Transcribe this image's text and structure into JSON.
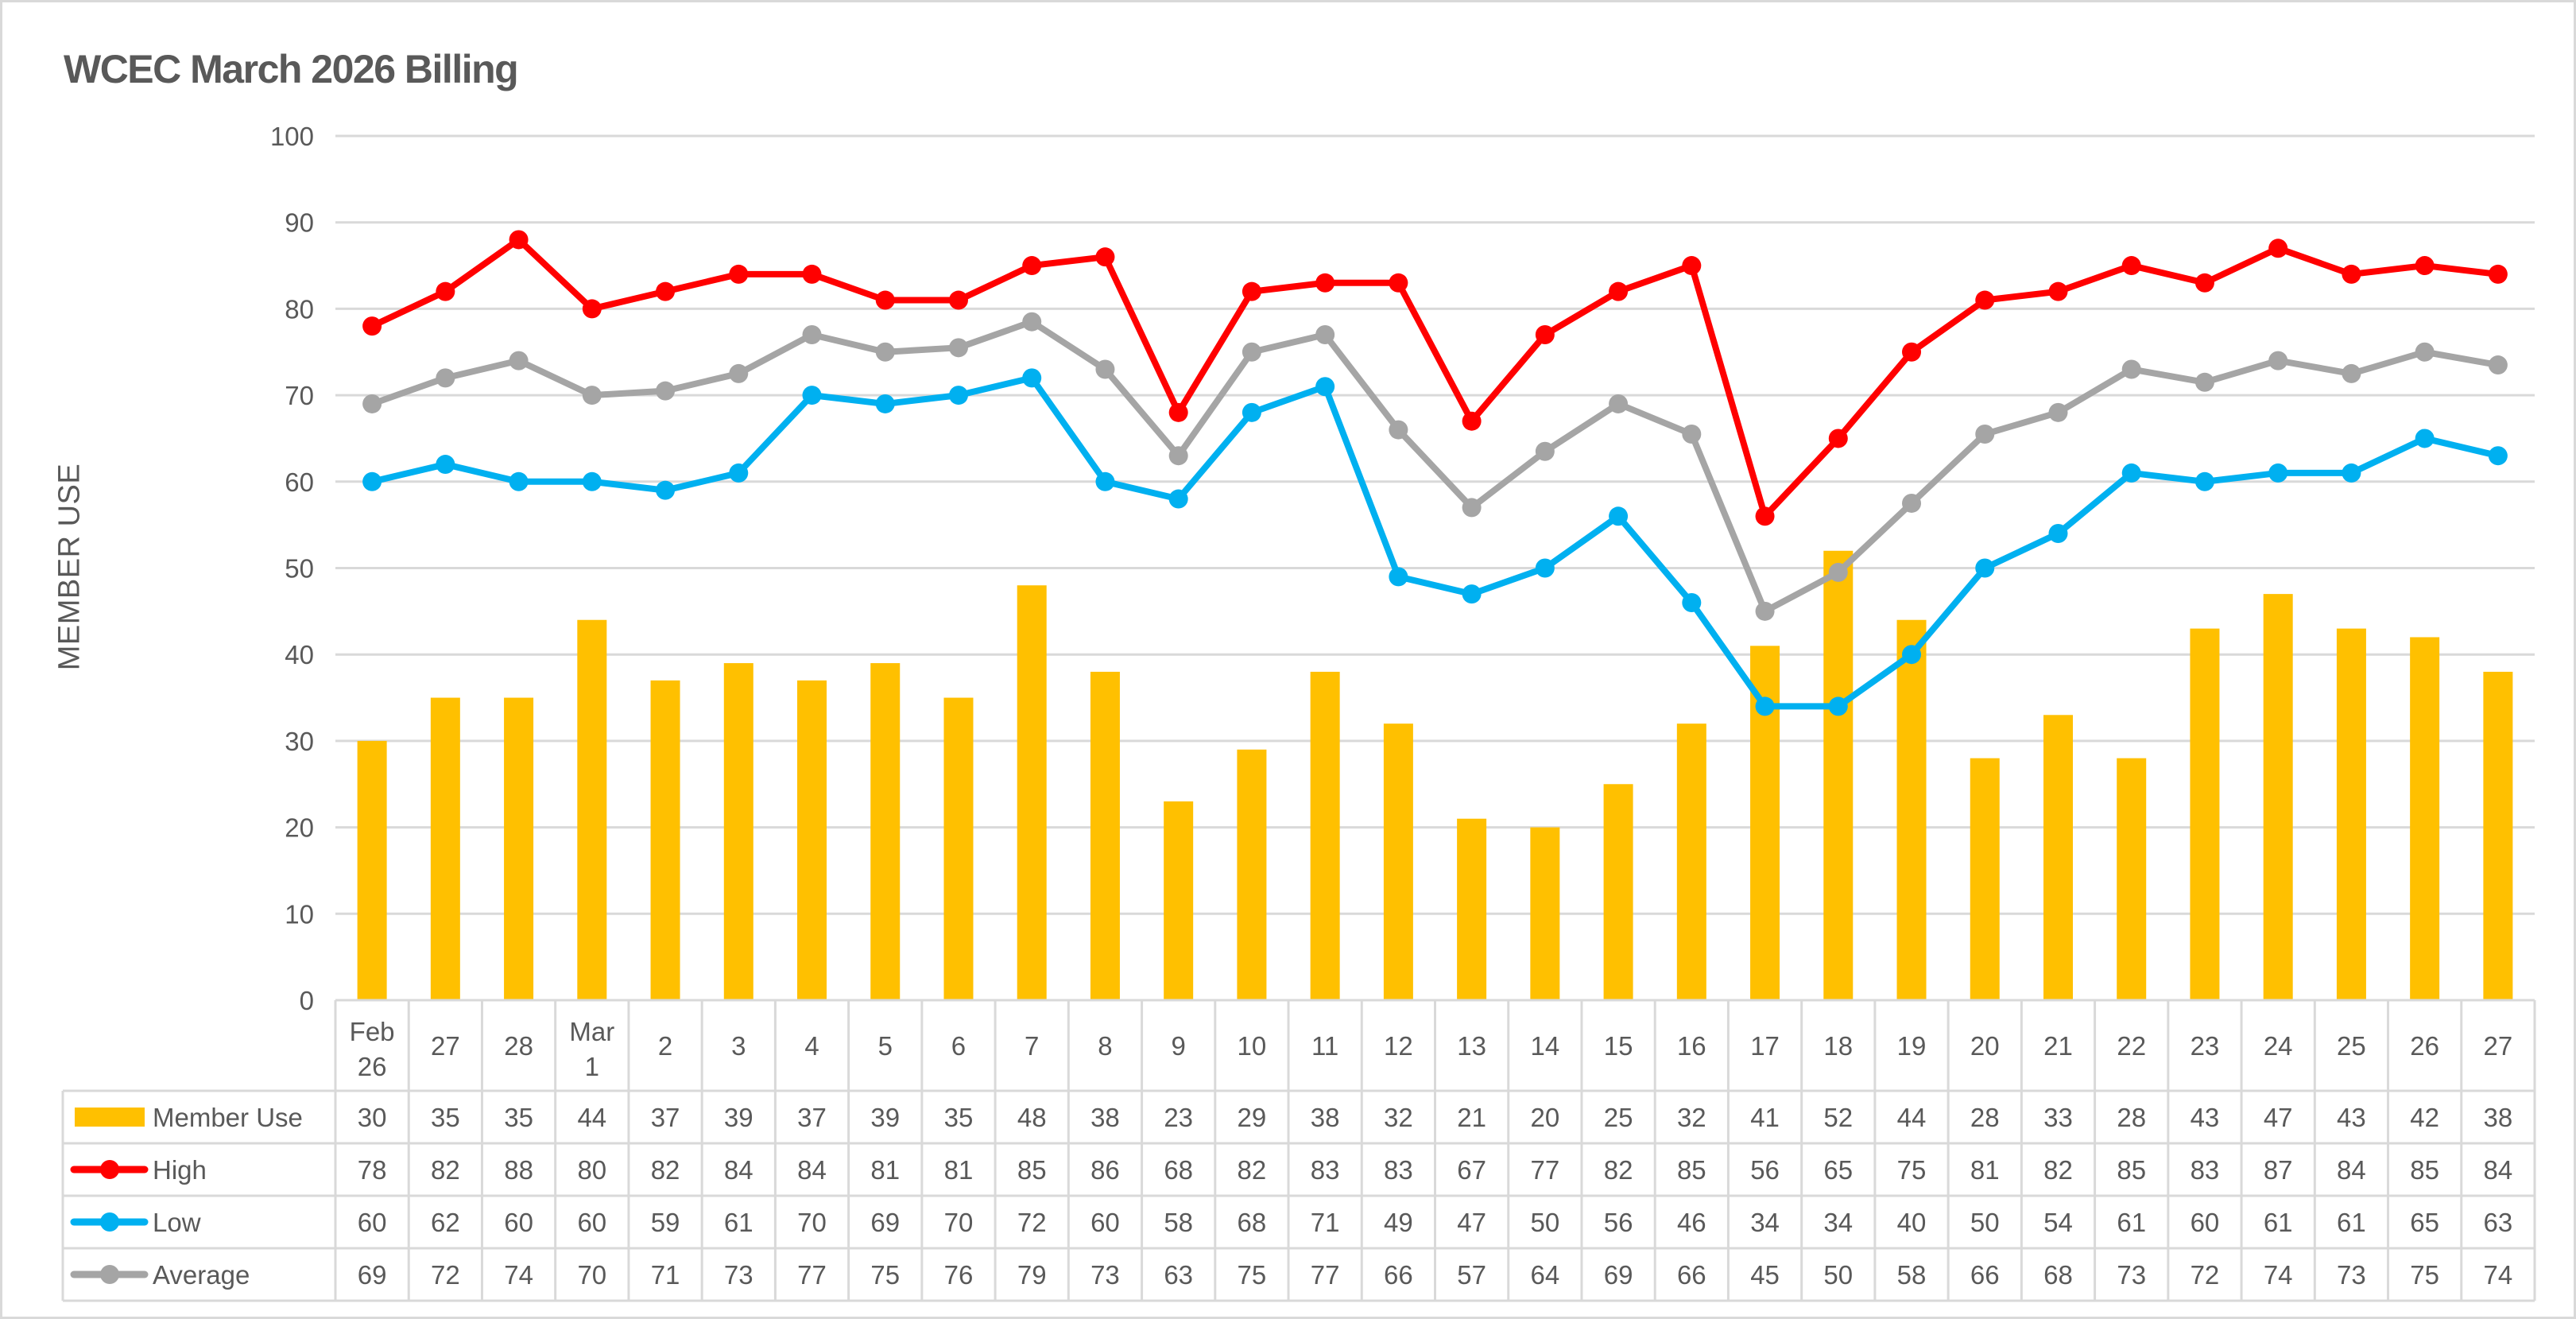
{
  "chart_data": {
    "type": "bar+line",
    "title": "WCEC March 2026 Billing",
    "xlabel": "",
    "ylabel": "MEMBER USE",
    "ylim": [
      0,
      100
    ],
    "yticks": [
      0,
      10,
      20,
      30,
      40,
      50,
      60,
      70,
      80,
      90,
      100
    ],
    "grid": true,
    "legend_position": "data-table",
    "categories": [
      "Feb 26",
      "27",
      "28",
      "Mar 1",
      "2",
      "3",
      "4",
      "5",
      "6",
      "7",
      "8",
      "9",
      "10",
      "11",
      "12",
      "13",
      "14",
      "15",
      "16",
      "17",
      "18",
      "19",
      "20",
      "21",
      "22",
      "23",
      "24",
      "25",
      "26",
      "27"
    ],
    "category_lines": [
      [
        "Feb",
        "26"
      ],
      [
        "27"
      ],
      [
        "28"
      ],
      [
        "Mar",
        "1"
      ],
      [
        "2"
      ],
      [
        "3"
      ],
      [
        "4"
      ],
      [
        "5"
      ],
      [
        "6"
      ],
      [
        "7"
      ],
      [
        "8"
      ],
      [
        "9"
      ],
      [
        "10"
      ],
      [
        "11"
      ],
      [
        "12"
      ],
      [
        "13"
      ],
      [
        "14"
      ],
      [
        "15"
      ],
      [
        "16"
      ],
      [
        "17"
      ],
      [
        "18"
      ],
      [
        "19"
      ],
      [
        "20"
      ],
      [
        "21"
      ],
      [
        "22"
      ],
      [
        "23"
      ],
      [
        "24"
      ],
      [
        "25"
      ],
      [
        "26"
      ],
      [
        "27"
      ]
    ],
    "series": [
      {
        "name": "Member Use",
        "type": "bar",
        "color": "#FFC000",
        "values": [
          30,
          35,
          35,
          44,
          37,
          39,
          37,
          39,
          35,
          48,
          38,
          23,
          29,
          38,
          32,
          21,
          20,
          25,
          32,
          41,
          52,
          44,
          28,
          33,
          28,
          43,
          47,
          43,
          42,
          38
        ]
      },
      {
        "name": "High",
        "type": "line",
        "color": "#FF0000",
        "values": [
          78,
          82,
          88,
          80,
          82,
          84,
          84,
          81,
          81,
          85,
          86,
          68,
          82,
          83,
          83,
          67,
          77,
          82,
          85,
          56,
          65,
          75,
          81,
          82,
          85,
          83,
          87,
          84,
          85,
          84
        ]
      },
      {
        "name": "Low",
        "type": "line",
        "color": "#00B0F0",
        "values": [
          60,
          62,
          60,
          60,
          59,
          61,
          70,
          69,
          70,
          72,
          60,
          58,
          68,
          71,
          49,
          47,
          50,
          56,
          46,
          34,
          34,
          40,
          50,
          54,
          61,
          60,
          61,
          61,
          65,
          63
        ]
      },
      {
        "name": "Average",
        "type": "line",
        "color": "#A5A5A5",
        "values": [
          69,
          72,
          74,
          70,
          70.5,
          72.5,
          77,
          75,
          75.5,
          78.5,
          73,
          63,
          75,
          77,
          66,
          57,
          63.5,
          69,
          65.5,
          45,
          49.5,
          57.5,
          65.5,
          68,
          73,
          71.5,
          74,
          72.5,
          75,
          73.5
        ],
        "table_values": [
          69,
          72,
          74,
          70,
          71,
          73,
          77,
          75,
          76,
          79,
          73,
          63,
          75,
          77,
          66,
          57,
          64,
          69,
          66,
          45,
          50,
          58,
          66,
          68,
          73,
          72,
          74,
          73,
          75,
          74
        ]
      }
    ]
  }
}
